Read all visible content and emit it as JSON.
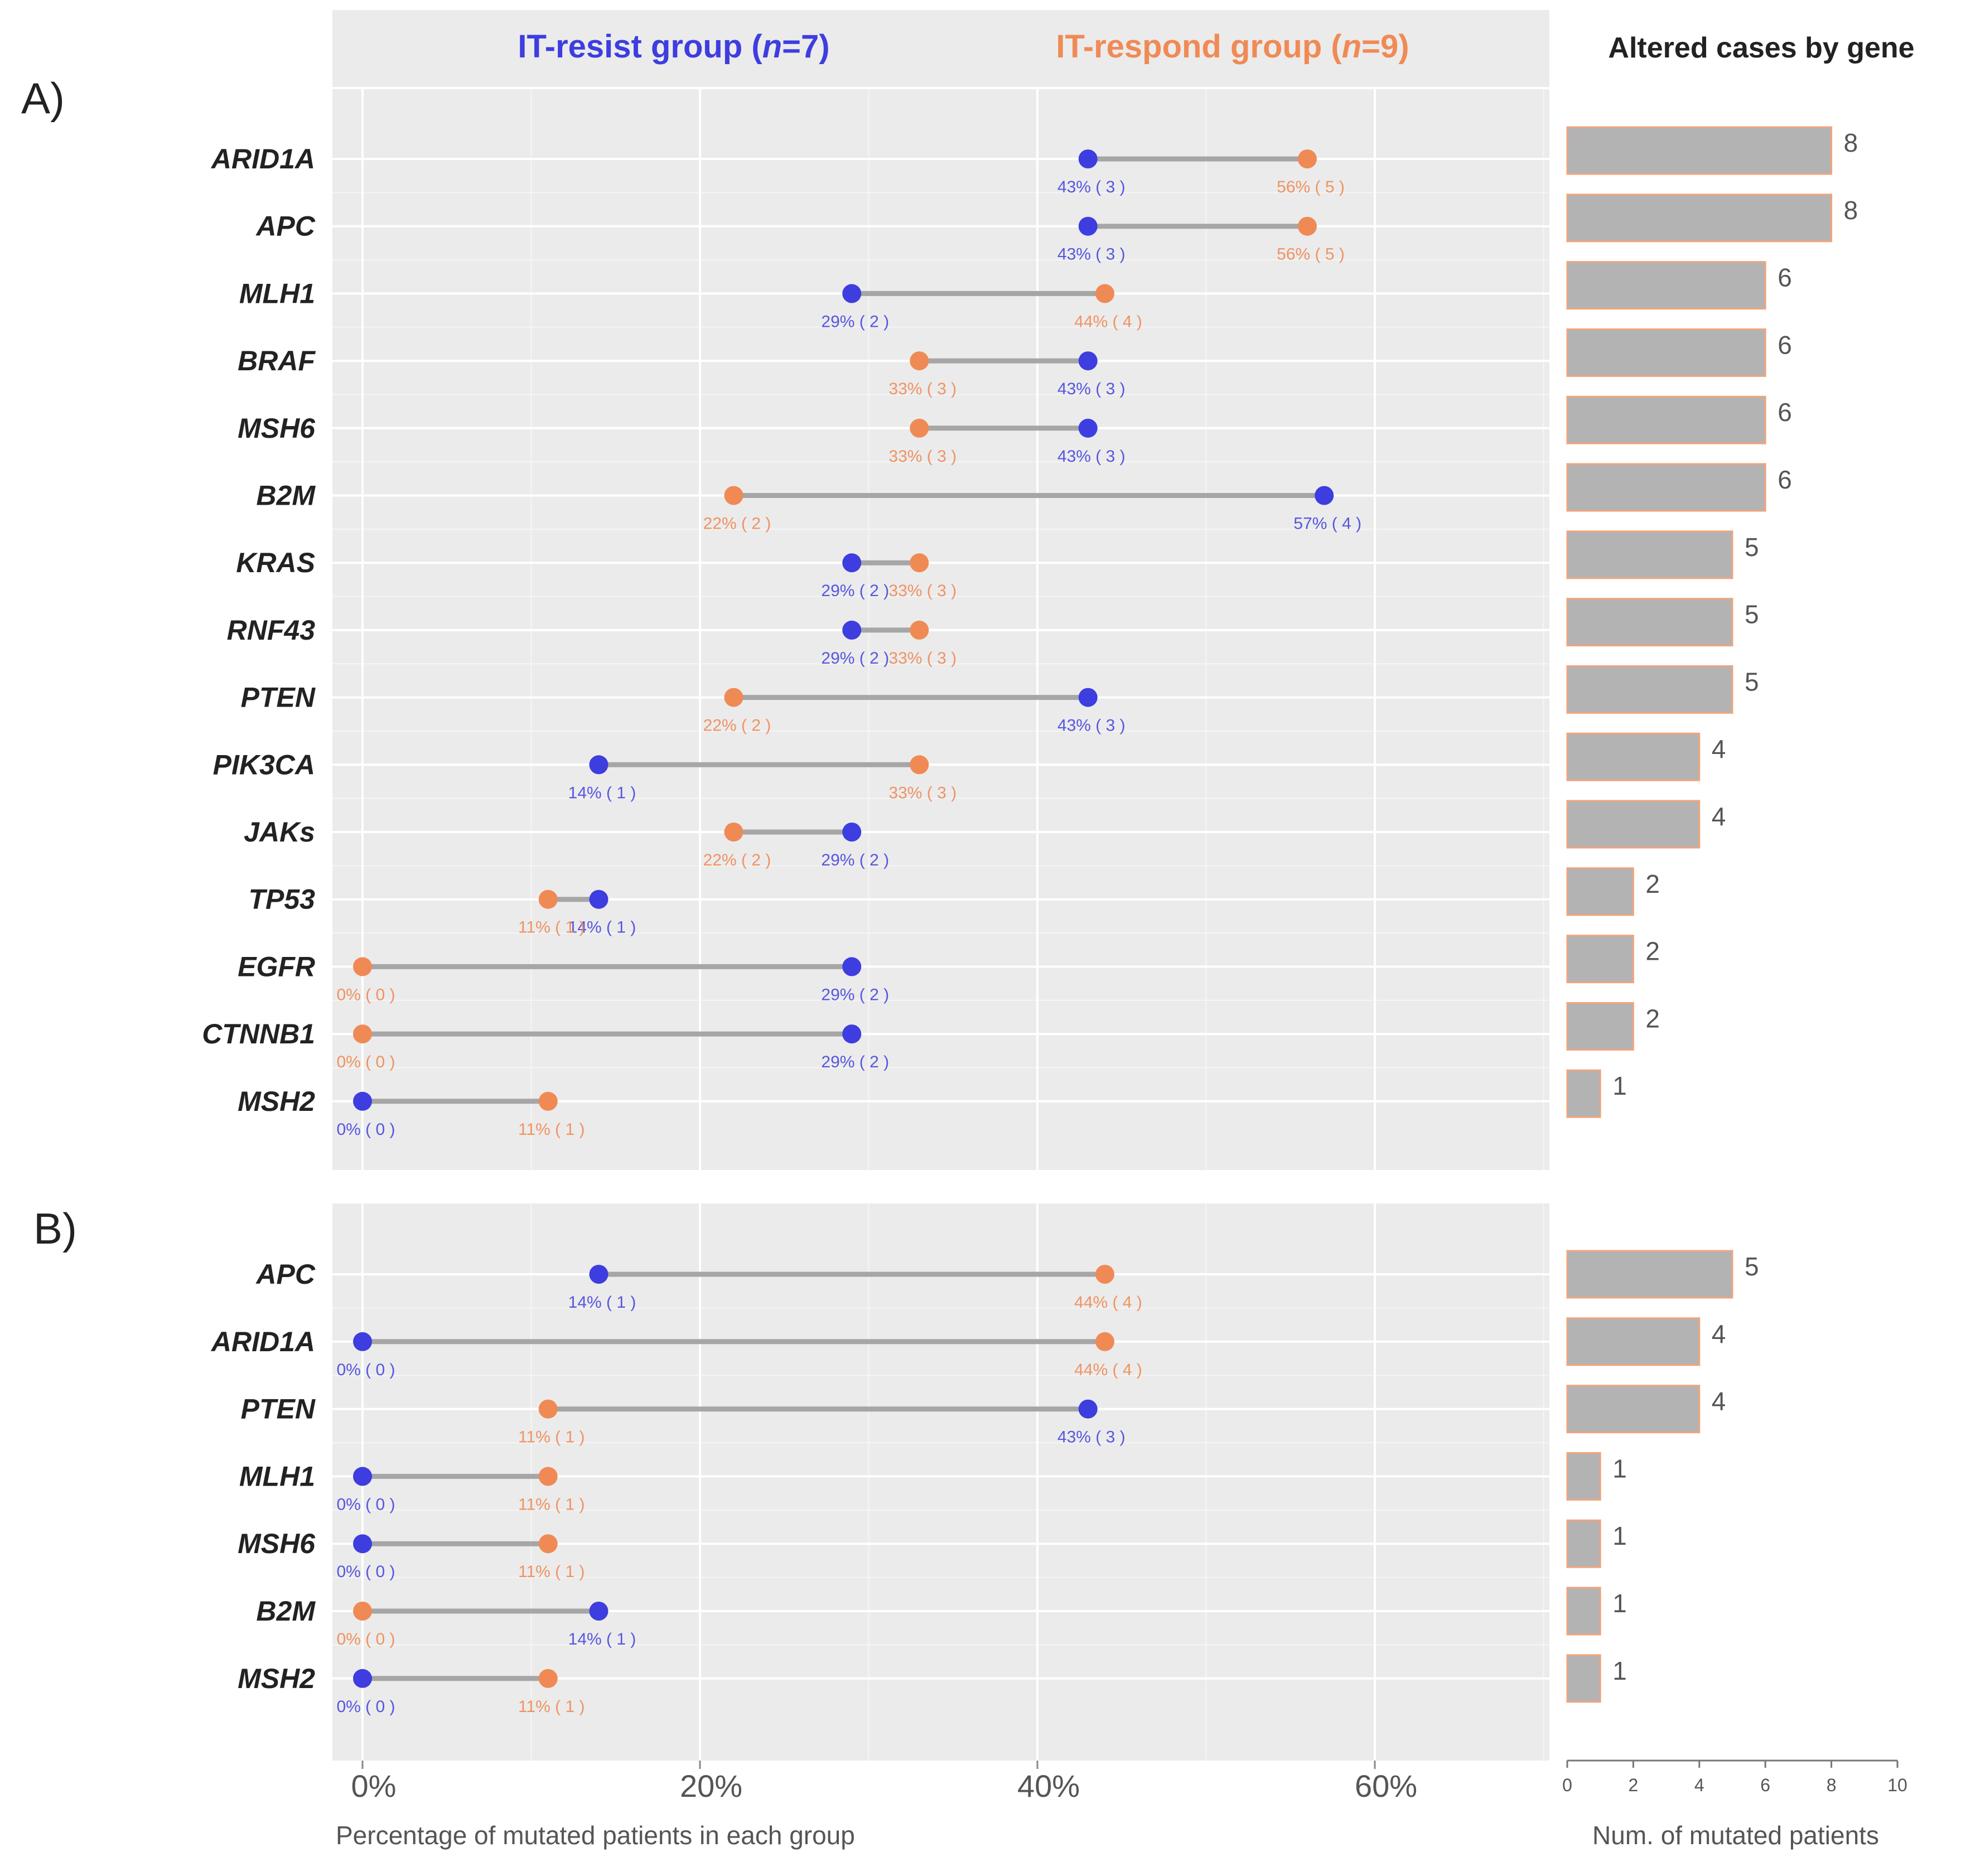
{
  "colors": {
    "resist": "#3d3de0",
    "respond": "#f08a55",
    "panel_bg": "#ebebeb",
    "grid": "#ffffff",
    "segment": "#a6a6a6",
    "bar_fill": "#b3b3b3",
    "bar_edge": "#f0a57c",
    "text": "#222222",
    "axis_text": "#555555"
  },
  "header": {
    "resist_label": "IT-resist group (",
    "resist_n": "n",
    "resist_count": "=7)",
    "respond_label": "IT-respond group (",
    "respond_n": "n",
    "respond_count": "=9)",
    "bars_title": "Altered cases by gene"
  },
  "panel_labels": [
    "A)",
    "B)"
  ],
  "chart_data": [
    {
      "type": "dumbbell",
      "panel": "A)",
      "xlabel": "Percentage of mutated patients in each group",
      "xlim": [
        -2,
        70
      ],
      "xticks": [
        0,
        20,
        40,
        60
      ],
      "xtick_labels": [
        "0%",
        "20%",
        "40%",
        "60%"
      ],
      "series": [
        {
          "name": "IT-resist group (n=7)",
          "color_key": "resist"
        },
        {
          "name": "IT-respond group (n=9)",
          "color_key": "respond"
        }
      ],
      "rows": [
        {
          "gene": "ARID1A",
          "resist": 43,
          "resist_label": "43% ( 3 )",
          "respond": 56,
          "respond_label": "56% ( 5 )"
        },
        {
          "gene": "APC",
          "resist": 43,
          "resist_label": "43% ( 3 )",
          "respond": 56,
          "respond_label": "56% ( 5 )"
        },
        {
          "gene": "MLH1",
          "resist": 29,
          "resist_label": "29% ( 2 )",
          "respond": 44,
          "respond_label": "44% ( 4 )"
        },
        {
          "gene": "BRAF",
          "resist": 43,
          "resist_label": "43% ( 3 )",
          "respond": 33,
          "respond_label": "33% ( 3 )"
        },
        {
          "gene": "MSH6",
          "resist": 43,
          "resist_label": "43% ( 3 )",
          "respond": 33,
          "respond_label": "33% ( 3 )"
        },
        {
          "gene": "B2M",
          "resist": 57,
          "resist_label": "57% ( 4 )",
          "respond": 22,
          "respond_label": "22% ( 2 )"
        },
        {
          "gene": "KRAS",
          "resist": 29,
          "resist_label": "29% ( 2 )",
          "respond": 33,
          "respond_label": "33% ( 3 )"
        },
        {
          "gene": "RNF43",
          "resist": 29,
          "resist_label": "29% ( 2 )",
          "respond": 33,
          "respond_label": "33% ( 3 )"
        },
        {
          "gene": "PTEN",
          "resist": 43,
          "resist_label": "43% ( 3 )",
          "respond": 22,
          "respond_label": "22% ( 2 )"
        },
        {
          "gene": "PIK3CA",
          "resist": 14,
          "resist_label": "14% ( 1 )",
          "respond": 33,
          "respond_label": "33% ( 3 )"
        },
        {
          "gene": "JAKs",
          "resist": 29,
          "resist_label": "29% ( 2 )",
          "respond": 22,
          "respond_label": "22% ( 2 )"
        },
        {
          "gene": "TP53",
          "resist": 14,
          "resist_label": "14% ( 1 )",
          "respond": 11,
          "respond_label": "11% ( 1 )"
        },
        {
          "gene": "EGFR",
          "resist": 29,
          "resist_label": "29% ( 2 )",
          "respond": 0,
          "respond_label": "0% ( 0 )"
        },
        {
          "gene": "CTNNB1",
          "resist": 29,
          "resist_label": "29% ( 2 )",
          "respond": 0,
          "respond_label": "0% ( 0 )"
        },
        {
          "gene": "MSH2",
          "resist": 0,
          "resist_label": "0% ( 0 )",
          "respond": 11,
          "respond_label": "11% ( 1 )"
        }
      ]
    },
    {
      "type": "dumbbell",
      "panel": "B)",
      "xlabel": "Percentage of mutated patients in each group",
      "xlim": [
        -2,
        70
      ],
      "xticks": [
        0,
        20,
        40,
        60
      ],
      "xtick_labels": [
        "0%",
        "20%",
        "40%",
        "60%"
      ],
      "rows": [
        {
          "gene": "APC",
          "resist": 14,
          "resist_label": "14% ( 1 )",
          "respond": 44,
          "respond_label": "44% ( 4 )"
        },
        {
          "gene": "ARID1A",
          "resist": 0,
          "resist_label": "0% ( 0 )",
          "respond": 44,
          "respond_label": "44% ( 4 )"
        },
        {
          "gene": "PTEN",
          "resist": 43,
          "resist_label": "43% ( 3 )",
          "respond": 11,
          "respond_label": "11% ( 1 )"
        },
        {
          "gene": "MLH1",
          "resist": 0,
          "resist_label": "0% ( 0 )",
          "respond": 11,
          "respond_label": "11% ( 1 )"
        },
        {
          "gene": "MSH6",
          "resist": 0,
          "resist_label": "0% ( 0 )",
          "respond": 11,
          "respond_label": "11% ( 1 )"
        },
        {
          "gene": "B2M",
          "resist": 14,
          "resist_label": "14% ( 1 )",
          "respond": 0,
          "respond_label": "0% ( 0 )"
        },
        {
          "gene": "MSH2",
          "resist": 0,
          "resist_label": "0% ( 0 )",
          "respond": 11,
          "respond_label": "11% ( 1 )"
        }
      ]
    },
    {
      "type": "bar",
      "orientation": "horizontal",
      "panel": "A)",
      "title": "Altered cases by gene",
      "categories": [
        "ARID1A",
        "APC",
        "MLH1",
        "BRAF",
        "MSH6",
        "B2M",
        "KRAS",
        "RNF43",
        "PTEN",
        "PIK3CA",
        "JAKs",
        "TP53",
        "EGFR",
        "CTNNB1",
        "MSH2"
      ],
      "values": [
        8,
        8,
        6,
        6,
        6,
        6,
        5,
        5,
        5,
        4,
        4,
        2,
        2,
        2,
        1
      ],
      "xlim": [
        0,
        10
      ]
    },
    {
      "type": "bar",
      "orientation": "horizontal",
      "panel": "B)",
      "categories": [
        "APC",
        "ARID1A",
        "PTEN",
        "MLH1",
        "MSH6",
        "B2M",
        "MSH2"
      ],
      "values": [
        5,
        4,
        4,
        1,
        1,
        1,
        1
      ],
      "xlim": [
        0,
        10
      ],
      "xticks": [
        0,
        2,
        4,
        6,
        8,
        10
      ],
      "xlabel": "Num. of mutated patients"
    }
  ]
}
